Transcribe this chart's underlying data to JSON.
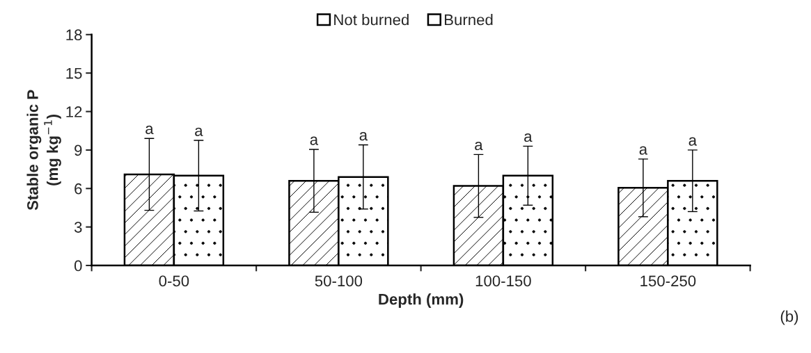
{
  "chart_data": {
    "type": "bar",
    "xlabel": "Depth (mm)",
    "ylabel": "Stable organic P\n(mg kg$^{−1}$)",
    "categories": [
      "0-50",
      "50-100",
      "100-150",
      "150-250"
    ],
    "series": [
      {
        "name": "Not burned",
        "color": "#ffffff",
        "values": [
          7.1,
          6.6,
          6.2,
          6.05
        ],
        "errors": [
          2.8,
          2.45,
          2.45,
          2.25
        ],
        "value_labels": [
          "a",
          "a",
          "a",
          "a"
        ]
      },
      {
        "name": "Burned",
        "color": "#ffffff",
        "values": [
          7.0,
          6.9,
          7.0,
          6.6
        ],
        "errors": [
          2.75,
          2.5,
          2.3,
          2.4
        ],
        "value_labels": [
          "a",
          "a",
          "a",
          "a"
        ]
      }
    ],
    "ylim": [
      0,
      18
    ],
    "yticks": [
      0,
      3,
      6,
      9,
      12,
      15,
      18
    ],
    "grid": false,
    "legend": "top",
    "annotations": [
      "(b)"
    ]
  }
}
